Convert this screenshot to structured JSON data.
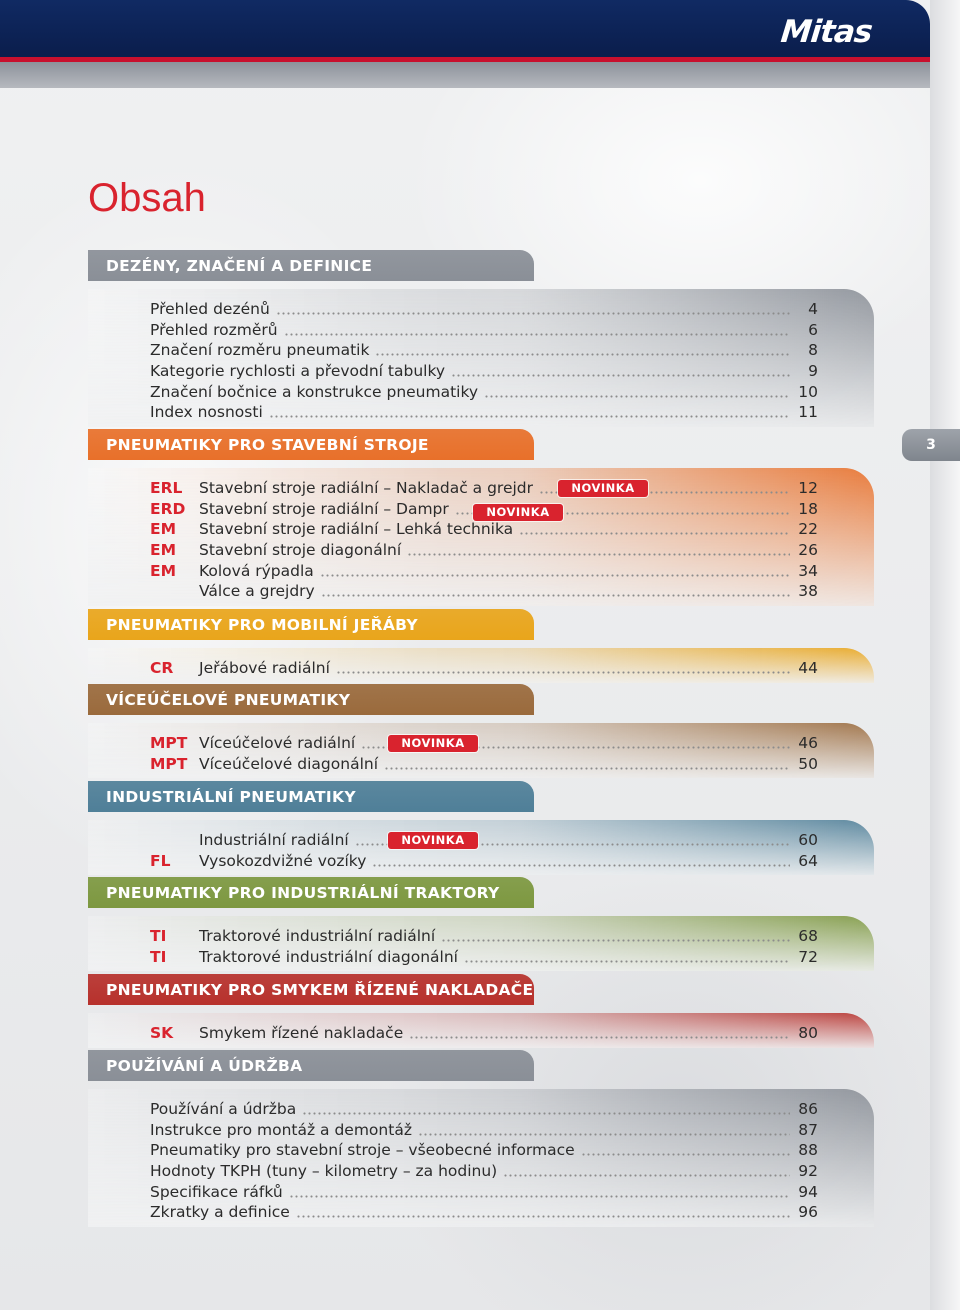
{
  "brand": {
    "logo": "Mitas",
    "accent": "#d9232e",
    "navy": "#0b1f4f"
  },
  "title": "Obsah",
  "page_number": "3",
  "new_badge": "NOVINKA",
  "sections": [
    {
      "id": "definitions",
      "heading": "DEZÉNY, ZNAČENÍ A DEFINICE",
      "color": "#8a8f97",
      "code_color": "#d9232e",
      "items": [
        {
          "code": "",
          "label": "Přehled dezénů",
          "page": "4"
        },
        {
          "code": "",
          "label": "Přehled rozměrů",
          "page": "6"
        },
        {
          "code": "",
          "label": "Značení rozměru pneumatik",
          "page": "8"
        },
        {
          "code": "",
          "label": "Kategorie rychlosti a převodní tabulky",
          "page": "9"
        },
        {
          "code": "",
          "label": "Značení bočnice a konstrukce pneumatiky",
          "page": "10"
        },
        {
          "code": "",
          "label": "Index nosnosti",
          "page": "11"
        }
      ]
    },
    {
      "id": "construction",
      "heading": "PNEUMATIKY PRO STAVEBNÍ STROJE",
      "color": "#e8702a",
      "code_color": "#d9232e",
      "items": [
        {
          "code": "ERL",
          "label": "Stavební stroje radiální – Nakladač a grejdr",
          "page": "12",
          "badge": true
        },
        {
          "code": "ERD",
          "label": "Stavební stroje radiální – Dampr",
          "page": "18",
          "badge": true
        },
        {
          "code": "EM",
          "label": "Stavební stroje radiální – Lehká technika",
          "page": "22"
        },
        {
          "code": "EM",
          "label": "Stavební stroje diagonální",
          "page": "26"
        },
        {
          "code": "EM",
          "label": "Kolová rýpadla",
          "page": "34"
        },
        {
          "code": "",
          "label": "Válce a grejdry",
          "page": "38"
        }
      ]
    },
    {
      "id": "cranes",
      "heading": "PNEUMATIKY PRO MOBILNÍ JEŘÁBY",
      "color": "#e9a51b",
      "code_color": "#d9232e",
      "items": [
        {
          "code": "CR",
          "label": "Jeřábové radiální",
          "page": "44"
        }
      ]
    },
    {
      "id": "multipurpose",
      "heading": "VÍCEÚČELOVÉ PNEUMATIKY",
      "color": "#9a6a3c",
      "code_color": "#d9232e",
      "items": [
        {
          "code": "MPT",
          "label": "Víceúčelové radiální",
          "page": "46",
          "badge": true
        },
        {
          "code": "MPT",
          "label": "Víceúčelové diagonální",
          "page": "50"
        }
      ]
    },
    {
      "id": "industrial",
      "heading": "INDUSTRIÁLNÍ PNEUMATIKY",
      "color": "#4f7f98",
      "code_color": "#d9232e",
      "items": [
        {
          "code": "",
          "label": "Industriální radiální",
          "page": "60",
          "badge": true
        },
        {
          "code": "FL",
          "label": "Vysokozdvižné vozíky",
          "page": "64"
        }
      ]
    },
    {
      "id": "tractors",
      "heading": "PNEUMATIKY PRO INDUSTRIÁLNÍ TRAKTORY",
      "color": "#7d9840",
      "code_color": "#d9232e",
      "items": [
        {
          "code": "TI",
          "label": "Traktorové industriální radiální",
          "page": "68"
        },
        {
          "code": "TI",
          "label": "Traktorové industriální diagonální",
          "page": "72"
        }
      ]
    },
    {
      "id": "skidsteer",
      "heading": "PNEUMATIKY PRO SMYKEM ŘÍZENÉ NAKLADAČE",
      "color": "#b7312c",
      "code_color": "#d9232e",
      "items": [
        {
          "code": "SK",
          "label": "Smykem řízené nakladače",
          "page": "80"
        }
      ]
    },
    {
      "id": "maintenance",
      "heading": "POUŽÍVÁNÍ A ÚDRŽBA",
      "color": "#8a8f97",
      "code_color": "#d9232e",
      "items": [
        {
          "code": "",
          "label": "Používání a údržba",
          "page": "86"
        },
        {
          "code": "",
          "label": "Instrukce pro montáž a demontáž",
          "page": "87"
        },
        {
          "code": "",
          "label": "Pneumatiky pro stavební stroje – všeobecné informace",
          "page": "88"
        },
        {
          "code": "",
          "label": "Hodnoty TKPH (tuny – kilometry – za hodinu)",
          "page": "92"
        },
        {
          "code": "",
          "label": "Specifikace ráfků",
          "page": "94"
        },
        {
          "code": "",
          "label": "Zkratky a definice",
          "page": "96"
        }
      ]
    }
  ]
}
